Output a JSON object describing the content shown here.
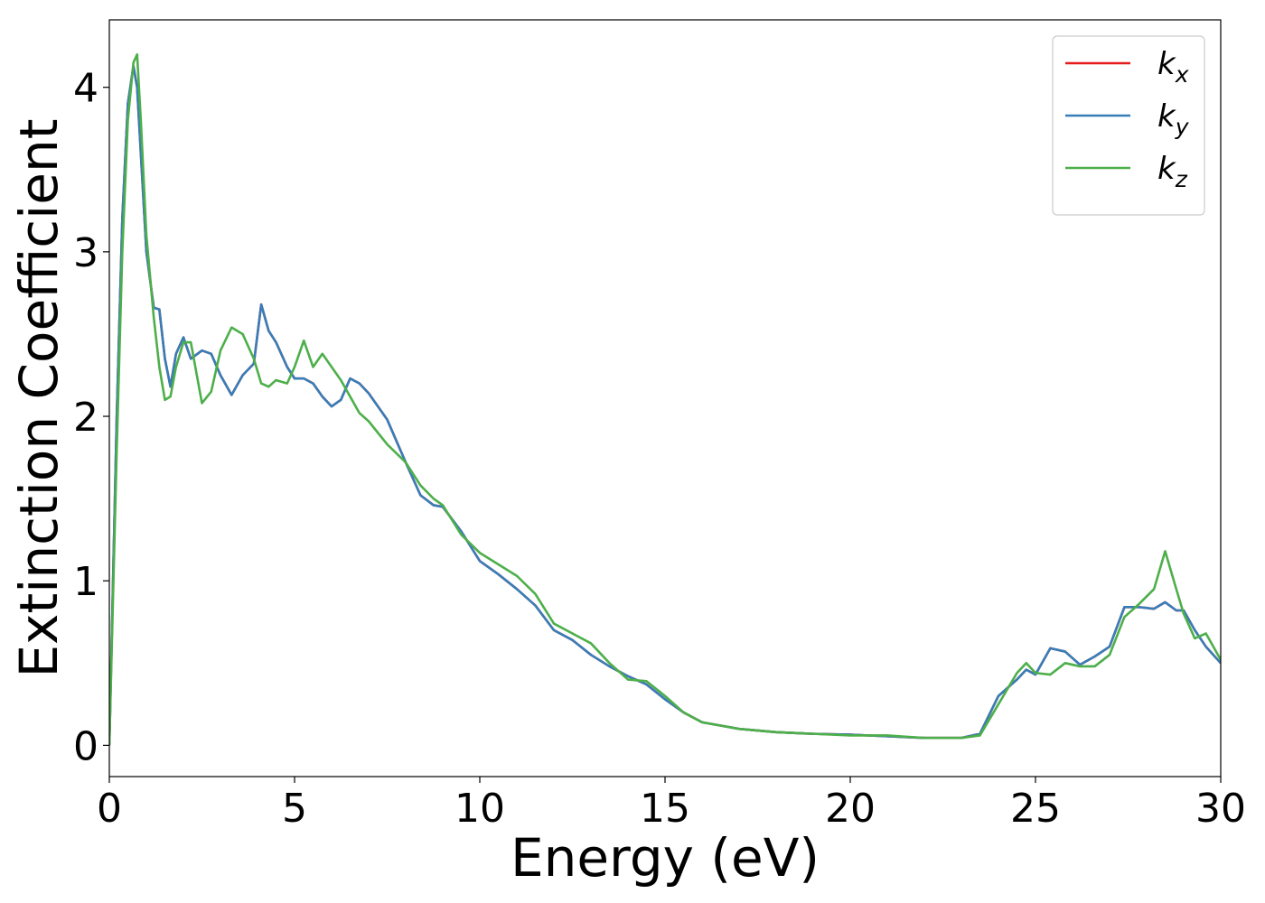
{
  "chart_data": {
    "type": "line",
    "x_label": "Energy (eV)",
    "y_label": "Extinction Coefficient",
    "x": [
      0,
      0.1,
      0.2,
      0.35,
      0.5,
      0.65,
      0.75,
      0.85,
      1.0,
      1.2,
      1.35,
      1.5,
      1.65,
      1.8,
      2.0,
      2.2,
      2.5,
      2.75,
      3.0,
      3.3,
      3.6,
      3.9,
      4.1,
      4.3,
      4.5,
      4.8,
      5.0,
      5.25,
      5.5,
      5.75,
      6.0,
      6.25,
      6.5,
      6.75,
      7.0,
      7.5,
      8.0,
      8.4,
      8.75,
      9.0,
      9.5,
      10,
      10.5,
      11,
      11.5,
      12,
      12.5,
      13,
      13.5,
      14,
      14.5,
      15,
      15.5,
      16,
      16.5,
      17,
      18,
      19,
      20,
      21,
      22,
      23,
      23.5,
      24,
      24.5,
      24.75,
      25,
      25.4,
      25.8,
      26.2,
      26.6,
      27,
      27.4,
      27.8,
      28.2,
      28.5,
      28.8,
      29,
      29.3,
      29.6,
      30
    ],
    "series": [
      {
        "name": "kx",
        "color": "#e41a1c",
        "values": [
          0,
          1.0,
          2.0,
          3.2,
          3.9,
          4.13,
          4.0,
          3.6,
          3.0,
          2.66,
          2.65,
          2.35,
          2.18,
          2.38,
          2.48,
          2.35,
          2.4,
          2.38,
          2.25,
          2.13,
          2.25,
          2.32,
          2.68,
          2.52,
          2.45,
          2.3,
          2.23,
          2.23,
          2.2,
          2.12,
          2.06,
          2.1,
          2.23,
          2.2,
          2.14,
          1.98,
          1.72,
          1.52,
          1.46,
          1.45,
          1.3,
          1.12,
          1.04,
          0.95,
          0.85,
          0.7,
          0.64,
          0.55,
          0.48,
          0.42,
          0.37,
          0.28,
          0.2,
          0.14,
          0.12,
          0.1,
          0.08,
          0.07,
          0.065,
          0.055,
          0.045,
          0.045,
          0.07,
          0.3,
          0.4,
          0.46,
          0.43,
          0.59,
          0.57,
          0.49,
          0.54,
          0.6,
          0.84,
          0.84,
          0.83,
          0.87,
          0.82,
          0.82,
          0.7,
          0.6,
          0.5
        ]
      },
      {
        "name": "ky",
        "color": "#377eb8",
        "values": [
          0,
          1.0,
          2.0,
          3.2,
          3.9,
          4.13,
          4.0,
          3.6,
          3.0,
          2.66,
          2.65,
          2.35,
          2.18,
          2.38,
          2.48,
          2.35,
          2.4,
          2.38,
          2.25,
          2.13,
          2.25,
          2.32,
          2.68,
          2.52,
          2.45,
          2.3,
          2.23,
          2.23,
          2.2,
          2.12,
          2.06,
          2.1,
          2.23,
          2.2,
          2.14,
          1.98,
          1.72,
          1.52,
          1.46,
          1.45,
          1.3,
          1.12,
          1.04,
          0.95,
          0.85,
          0.7,
          0.64,
          0.55,
          0.48,
          0.42,
          0.37,
          0.28,
          0.2,
          0.14,
          0.12,
          0.1,
          0.08,
          0.07,
          0.065,
          0.055,
          0.045,
          0.045,
          0.07,
          0.3,
          0.4,
          0.46,
          0.43,
          0.59,
          0.57,
          0.49,
          0.54,
          0.6,
          0.84,
          0.84,
          0.83,
          0.87,
          0.82,
          0.82,
          0.7,
          0.6,
          0.5
        ]
      },
      {
        "name": "kz",
        "color": "#4daf4a",
        "values": [
          0,
          0.9,
          1.8,
          3.0,
          3.8,
          4.15,
          4.2,
          3.8,
          3.1,
          2.6,
          2.3,
          2.1,
          2.12,
          2.3,
          2.45,
          2.45,
          2.08,
          2.15,
          2.4,
          2.54,
          2.5,
          2.35,
          2.2,
          2.18,
          2.22,
          2.2,
          2.3,
          2.46,
          2.3,
          2.38,
          2.3,
          2.22,
          2.12,
          2.02,
          1.97,
          1.83,
          1.72,
          1.58,
          1.5,
          1.46,
          1.28,
          1.17,
          1.1,
          1.03,
          0.92,
          0.74,
          0.68,
          0.62,
          0.5,
          0.4,
          0.39,
          0.3,
          0.2,
          0.14,
          0.12,
          0.1,
          0.08,
          0.07,
          0.06,
          0.06,
          0.045,
          0.045,
          0.06,
          0.25,
          0.44,
          0.5,
          0.44,
          0.43,
          0.5,
          0.48,
          0.48,
          0.55,
          0.78,
          0.86,
          0.95,
          1.18,
          0.95,
          0.8,
          0.65,
          0.68,
          0.52
        ]
      }
    ],
    "xlim": [
      0,
      30
    ],
    "ylim": [
      -0.19,
      4.41
    ],
    "xticks": [
      0,
      5,
      10,
      15,
      20,
      25,
      30
    ],
    "yticks": [
      0,
      1,
      2,
      3,
      4
    ],
    "legend": "upper right"
  }
}
